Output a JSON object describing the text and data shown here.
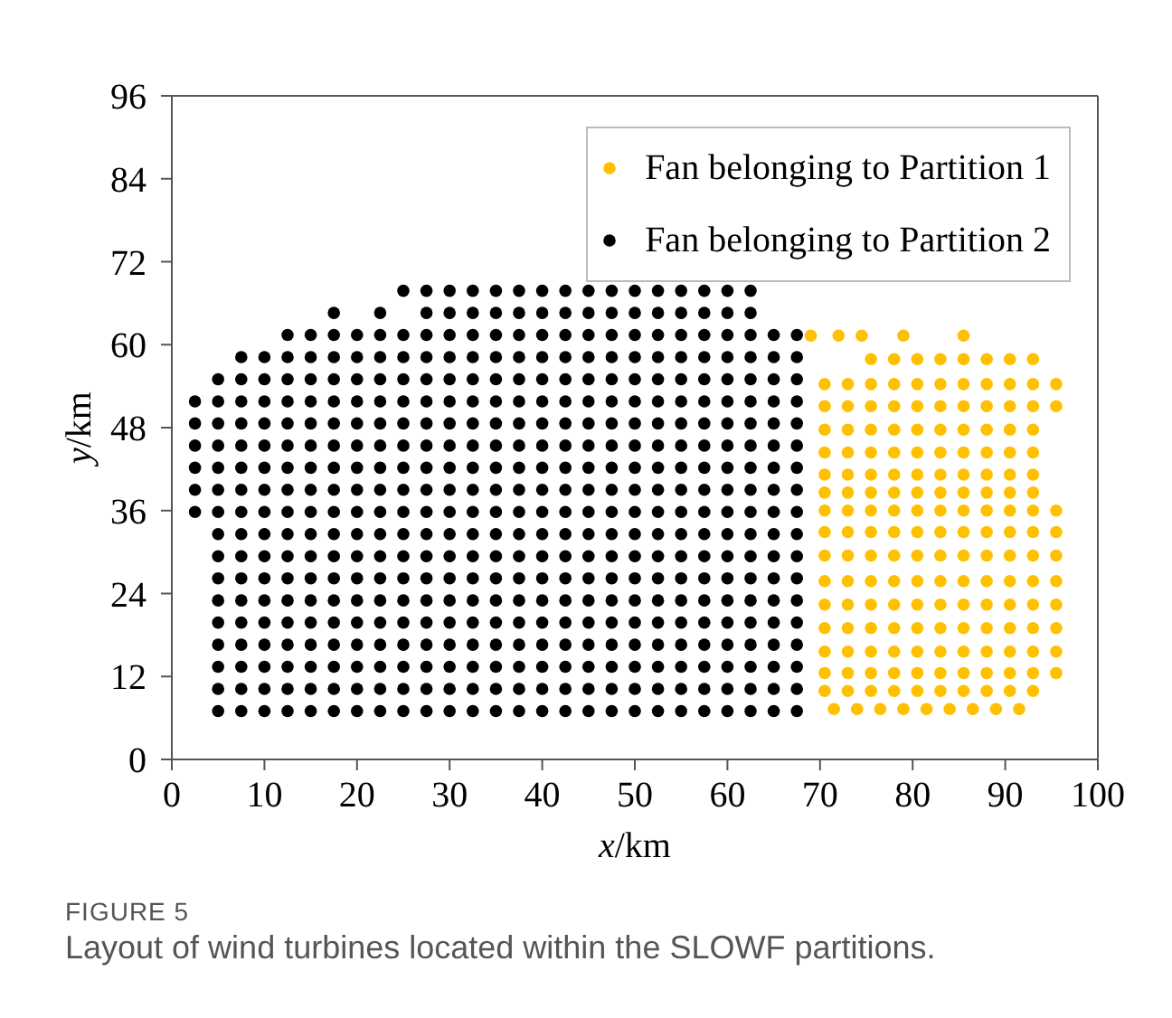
{
  "chart_data": {
    "type": "scatter",
    "xlabel": "x/km",
    "ylabel": "y/km",
    "xlim": [
      0,
      100
    ],
    "xticks": [
      0,
      10,
      20,
      30,
      40,
      50,
      60,
      70,
      80,
      90,
      100
    ],
    "ylim": [
      0,
      96
    ],
    "yticks": [
      0,
      12,
      24,
      36,
      48,
      60,
      72,
      84,
      96
    ],
    "grid": false,
    "legend": "top right",
    "marker": "circle",
    "annotations": [
      "FIGURE 5",
      "Layout of wind turbines located within the SLOWF partitions."
    ],
    "series": [
      {
        "name": "Fan belonging to Partition 1",
        "color": "#ffc000",
        "x": [
          71.5,
          74,
          76.5,
          79,
          81.5,
          84,
          86.5,
          89,
          91.5,
          70.5,
          73,
          75.5,
          78,
          80.5,
          83,
          85.5,
          88,
          90.5,
          93,
          70.5,
          73,
          75.5,
          78,
          80.5,
          83,
          85.5,
          88,
          90.5,
          93,
          95.5,
          70.5,
          73,
          75.5,
          78,
          80.5,
          83,
          85.5,
          88,
          90.5,
          93,
          95.5,
          70.5,
          73,
          75.5,
          78,
          80.5,
          83,
          85.5,
          88,
          90.5,
          93,
          95.5,
          70.5,
          73,
          75.5,
          78,
          80.5,
          83,
          85.5,
          88,
          90.5,
          93,
          95.5,
          70.5,
          73,
          75.5,
          78,
          80.5,
          83,
          85.5,
          88,
          90.5,
          93,
          95.5,
          70.5,
          73,
          75.5,
          78,
          80.5,
          83,
          85.5,
          88,
          90.5,
          93,
          95.5,
          70.5,
          73,
          75.5,
          78,
          80.5,
          83,
          85.5,
          88,
          90.5,
          93,
          95.5,
          70.5,
          73,
          75.5,
          78,
          80.5,
          83,
          85.5,
          88,
          90.5,
          93,
          95.5,
          70.5,
          73,
          75.5,
          78,
          80.5,
          83,
          85.5,
          88,
          90.5,
          93,
          70.5,
          73,
          75.5,
          78,
          80.5,
          83,
          85.5,
          88,
          90.5,
          93,
          70.5,
          73,
          75.5,
          78,
          80.5,
          83,
          85.5,
          88,
          90.5,
          93,
          70.5,
          73,
          75.5,
          78,
          80.5,
          83,
          85.5,
          88,
          90.5,
          93,
          70.5,
          73,
          75.5,
          78,
          80.5,
          83,
          85.5,
          88,
          90.5,
          93,
          95.5,
          70.5,
          73,
          75.5,
          78,
          80.5,
          83,
          85.5,
          88,
          90.5,
          93,
          95.5,
          75.5,
          78,
          80.5,
          83,
          85.5,
          88,
          90.5,
          93,
          69,
          72,
          74.5,
          79,
          85.5
        ],
        "values": [
          7.3,
          7.3,
          7.3,
          7.3,
          7.3,
          7.3,
          7.3,
          7.3,
          7.3,
          9.9,
          9.9,
          9.9,
          9.9,
          9.9,
          9.9,
          9.9,
          9.9,
          9.9,
          9.9,
          12.5,
          12.5,
          12.5,
          12.5,
          12.5,
          12.5,
          12.5,
          12.5,
          12.5,
          12.5,
          12.5,
          15.6,
          15.6,
          15.6,
          15.6,
          15.6,
          15.6,
          15.6,
          15.6,
          15.6,
          15.6,
          15.6,
          19,
          19,
          19,
          19,
          19,
          19,
          19,
          19,
          19,
          19,
          19,
          22.4,
          22.4,
          22.4,
          22.4,
          22.4,
          22.4,
          22.4,
          22.4,
          22.4,
          22.4,
          22.4,
          25.8,
          25.8,
          25.8,
          25.8,
          25.8,
          25.8,
          25.8,
          25.8,
          25.8,
          25.8,
          25.8,
          29.5,
          29.5,
          29.5,
          29.5,
          29.5,
          29.5,
          29.5,
          29.5,
          29.5,
          29.5,
          29.5,
          32.9,
          32.9,
          32.9,
          32.9,
          32.9,
          32.9,
          32.9,
          32.9,
          32.9,
          32.9,
          32.9,
          36,
          36,
          36,
          36,
          36,
          36,
          36,
          36,
          36,
          36,
          36,
          38.6,
          38.6,
          38.6,
          38.6,
          38.6,
          38.6,
          38.6,
          38.6,
          38.6,
          38.6,
          41.2,
          41.2,
          41.2,
          41.2,
          41.2,
          41.2,
          41.2,
          41.2,
          41.2,
          41.2,
          44.4,
          44.4,
          44.4,
          44.4,
          44.4,
          44.4,
          44.4,
          44.4,
          44.4,
          44.4,
          47.7,
          47.7,
          47.7,
          47.7,
          47.7,
          47.7,
          47.7,
          47.7,
          47.7,
          47.7,
          51.1,
          51.1,
          51.1,
          51.1,
          51.1,
          51.1,
          51.1,
          51.1,
          51.1,
          51.1,
          51.1,
          54.3,
          54.3,
          54.3,
          54.3,
          54.3,
          54.3,
          54.3,
          54.3,
          54.3,
          54.3,
          54.3,
          57.9,
          57.9,
          57.9,
          57.9,
          57.9,
          57.9,
          57.9,
          57.9,
          61.3,
          61.3,
          61.3,
          61.3,
          61.3
        ]
      },
      {
        "name": "Fan belonging to Partition 2",
        "color": "#000000",
        "x": [
          5,
          7.5,
          10,
          12.5,
          15,
          17.5,
          20,
          22.5,
          25,
          27.5,
          30,
          32.5,
          35,
          37.5,
          40,
          42.5,
          45,
          47.5,
          50,
          52.5,
          55,
          57.5,
          60,
          62.5,
          65,
          67.5,
          5,
          7.5,
          10,
          12.5,
          15,
          17.5,
          20,
          22.5,
          25,
          27.5,
          30,
          32.5,
          35,
          37.5,
          40,
          42.5,
          45,
          47.5,
          50,
          52.5,
          55,
          57.5,
          60,
          62.5,
          65,
          67.5,
          5,
          7.5,
          10,
          12.5,
          15,
          17.5,
          20,
          22.5,
          25,
          27.5,
          30,
          32.5,
          35,
          37.5,
          40,
          42.5,
          45,
          47.5,
          50,
          52.5,
          55,
          57.5,
          60,
          62.5,
          65,
          67.5,
          5,
          7.5,
          10,
          12.5,
          15,
          17.5,
          20,
          22.5,
          25,
          27.5,
          30,
          32.5,
          35,
          37.5,
          40,
          42.5,
          45,
          47.5,
          50,
          52.5,
          55,
          57.5,
          60,
          62.5,
          65,
          67.5,
          5,
          7.5,
          10,
          12.5,
          15,
          17.5,
          20,
          22.5,
          25,
          27.5,
          30,
          32.5,
          35,
          37.5,
          40,
          42.5,
          45,
          47.5,
          50,
          52.5,
          55,
          57.5,
          60,
          62.5,
          65,
          67.5,
          5,
          7.5,
          10,
          12.5,
          15,
          17.5,
          20,
          22.5,
          25,
          27.5,
          30,
          32.5,
          35,
          37.5,
          40,
          42.5,
          45,
          47.5,
          50,
          52.5,
          55,
          57.5,
          60,
          62.5,
          65,
          67.5,
          5,
          7.5,
          10,
          12.5,
          15,
          17.5,
          20,
          22.5,
          25,
          27.5,
          30,
          32.5,
          35,
          37.5,
          40,
          42.5,
          45,
          47.5,
          50,
          52.5,
          55,
          57.5,
          60,
          62.5,
          65,
          67.5,
          5,
          7.5,
          10,
          12.5,
          15,
          17.5,
          20,
          22.5,
          25,
          27.5,
          30,
          32.5,
          35,
          37.5,
          40,
          42.5,
          45,
          47.5,
          50,
          52.5,
          55,
          57.5,
          60,
          62.5,
          65,
          67.5,
          5,
          7.5,
          10,
          12.5,
          15,
          17.5,
          20,
          22.5,
          25,
          27.5,
          30,
          32.5,
          35,
          37.5,
          40,
          42.5,
          45,
          47.5,
          50,
          52.5,
          55,
          57.5,
          60,
          62.5,
          65,
          67.5,
          2.5,
          5,
          7.5,
          10,
          12.5,
          15,
          17.5,
          20,
          22.5,
          25,
          27.5,
          30,
          32.5,
          35,
          37.5,
          40,
          42.5,
          45,
          47.5,
          50,
          52.5,
          55,
          57.5,
          60,
          62.5,
          65,
          67.5,
          2.5,
          5,
          7.5,
          10,
          12.5,
          15,
          17.5,
          20,
          22.5,
          25,
          27.5,
          30,
          32.5,
          35,
          37.5,
          40,
          42.5,
          45,
          47.5,
          50,
          52.5,
          55,
          57.5,
          60,
          62.5,
          65,
          67.5,
          2.5,
          5,
          7.5,
          10,
          12.5,
          15,
          17.5,
          20,
          22.5,
          25,
          27.5,
          30,
          32.5,
          35,
          37.5,
          40,
          42.5,
          45,
          47.5,
          50,
          52.5,
          55,
          57.5,
          60,
          62.5,
          65,
          67.5,
          2.5,
          5,
          7.5,
          10,
          12.5,
          15,
          17.5,
          20,
          22.5,
          25,
          27.5,
          30,
          32.5,
          35,
          37.5,
          40,
          42.5,
          45,
          47.5,
          50,
          52.5,
          55,
          57.5,
          60,
          62.5,
          65,
          67.5,
          2.5,
          5,
          7.5,
          10,
          12.5,
          15,
          17.5,
          20,
          22.5,
          25,
          27.5,
          30,
          32.5,
          35,
          37.5,
          40,
          42.5,
          45,
          47.5,
          50,
          52.5,
          55,
          57.5,
          60,
          62.5,
          65,
          67.5,
          2.5,
          5,
          7.5,
          10,
          12.5,
          15,
          17.5,
          20,
          22.5,
          25,
          27.5,
          30,
          32.5,
          35,
          37.5,
          40,
          42.5,
          45,
          47.5,
          50,
          52.5,
          55,
          57.5,
          60,
          62.5,
          65,
          67.5,
          5,
          7.5,
          10,
          12.5,
          15,
          17.5,
          20,
          22.5,
          25,
          27.5,
          30,
          32.5,
          35,
          37.5,
          40,
          42.5,
          45,
          47.5,
          50,
          52.5,
          55,
          57.5,
          60,
          62.5,
          65,
          67.5,
          7.5,
          10,
          12.5,
          15,
          17.5,
          20,
          22.5,
          25,
          27.5,
          30,
          32.5,
          35,
          37.5,
          40,
          42.5,
          45,
          47.5,
          50,
          52.5,
          55,
          57.5,
          60,
          62.5,
          65,
          67.5,
          12.5,
          15,
          17.5,
          20,
          22.5,
          25,
          27.5,
          30,
          32.5,
          35,
          37.5,
          40,
          42.5,
          45,
          47.5,
          50,
          52.5,
          55,
          57.5,
          60,
          62.5,
          65,
          67.5,
          17.5,
          22.5,
          27.5,
          30,
          32.5,
          35,
          37.5,
          40,
          42.5,
          45,
          47.5,
          50,
          52.5,
          55,
          57.5,
          60,
          62.5,
          25,
          27.5,
          30,
          32.5,
          35,
          37.5,
          40,
          42.5,
          45,
          47.5,
          50,
          52.5,
          55,
          57.5,
          60,
          62.5
        ],
        "values": [
          7,
          7,
          7,
          7,
          7,
          7,
          7,
          7,
          7,
          7,
          7,
          7,
          7,
          7,
          7,
          7,
          7,
          7,
          7,
          7,
          7,
          7,
          7,
          7,
          7,
          7,
          10.2,
          10.2,
          10.2,
          10.2,
          10.2,
          10.2,
          10.2,
          10.2,
          10.2,
          10.2,
          10.2,
          10.2,
          10.2,
          10.2,
          10.2,
          10.2,
          10.2,
          10.2,
          10.2,
          10.2,
          10.2,
          10.2,
          10.2,
          10.2,
          10.2,
          10.2,
          13.4,
          13.4,
          13.4,
          13.4,
          13.4,
          13.4,
          13.4,
          13.4,
          13.4,
          13.4,
          13.4,
          13.4,
          13.4,
          13.4,
          13.4,
          13.4,
          13.4,
          13.4,
          13.4,
          13.4,
          13.4,
          13.4,
          13.4,
          13.4,
          13.4,
          13.4,
          16.6,
          16.6,
          16.6,
          16.6,
          16.6,
          16.6,
          16.6,
          16.6,
          16.6,
          16.6,
          16.6,
          16.6,
          16.6,
          16.6,
          16.6,
          16.6,
          16.6,
          16.6,
          16.6,
          16.6,
          16.6,
          16.6,
          16.6,
          16.6,
          16.6,
          16.6,
          19.8,
          19.8,
          19.8,
          19.8,
          19.8,
          19.8,
          19.8,
          19.8,
          19.8,
          19.8,
          19.8,
          19.8,
          19.8,
          19.8,
          19.8,
          19.8,
          19.8,
          19.8,
          19.8,
          19.8,
          19.8,
          19.8,
          19.8,
          19.8,
          19.8,
          19.8,
          23,
          23,
          23,
          23,
          23,
          23,
          23,
          23,
          23,
          23,
          23,
          23,
          23,
          23,
          23,
          23,
          23,
          23,
          23,
          23,
          23,
          23,
          23,
          23,
          23,
          23,
          26.2,
          26.2,
          26.2,
          26.2,
          26.2,
          26.2,
          26.2,
          26.2,
          26.2,
          26.2,
          26.2,
          26.2,
          26.2,
          26.2,
          26.2,
          26.2,
          26.2,
          26.2,
          26.2,
          26.2,
          26.2,
          26.2,
          26.2,
          26.2,
          26.2,
          26.2,
          29.4,
          29.4,
          29.4,
          29.4,
          29.4,
          29.4,
          29.4,
          29.4,
          29.4,
          29.4,
          29.4,
          29.4,
          29.4,
          29.4,
          29.4,
          29.4,
          29.4,
          29.4,
          29.4,
          29.4,
          29.4,
          29.4,
          29.4,
          29.4,
          29.4,
          29.4,
          32.6,
          32.6,
          32.6,
          32.6,
          32.6,
          32.6,
          32.6,
          32.6,
          32.6,
          32.6,
          32.6,
          32.6,
          32.6,
          32.6,
          32.6,
          32.6,
          32.6,
          32.6,
          32.6,
          32.6,
          32.6,
          32.6,
          32.6,
          32.6,
          32.6,
          32.6,
          35.8,
          35.8,
          35.8,
          35.8,
          35.8,
          35.8,
          35.8,
          35.8,
          35.8,
          35.8,
          35.8,
          35.8,
          35.8,
          35.8,
          35.8,
          35.8,
          35.8,
          35.8,
          35.8,
          35.8,
          35.8,
          35.8,
          35.8,
          35.8,
          35.8,
          35.8,
          35.8,
          39,
          39,
          39,
          39,
          39,
          39,
          39,
          39,
          39,
          39,
          39,
          39,
          39,
          39,
          39,
          39,
          39,
          39,
          39,
          39,
          39,
          39,
          39,
          39,
          39,
          39,
          39,
          42.2,
          42.2,
          42.2,
          42.2,
          42.2,
          42.2,
          42.2,
          42.2,
          42.2,
          42.2,
          42.2,
          42.2,
          42.2,
          42.2,
          42.2,
          42.2,
          42.2,
          42.2,
          42.2,
          42.2,
          42.2,
          42.2,
          42.2,
          42.2,
          42.2,
          42.2,
          42.2,
          45.4,
          45.4,
          45.4,
          45.4,
          45.4,
          45.4,
          45.4,
          45.4,
          45.4,
          45.4,
          45.4,
          45.4,
          45.4,
          45.4,
          45.4,
          45.4,
          45.4,
          45.4,
          45.4,
          45.4,
          45.4,
          45.4,
          45.4,
          45.4,
          45.4,
          45.4,
          45.4,
          48.6,
          48.6,
          48.6,
          48.6,
          48.6,
          48.6,
          48.6,
          48.6,
          48.6,
          48.6,
          48.6,
          48.6,
          48.6,
          48.6,
          48.6,
          48.6,
          48.6,
          48.6,
          48.6,
          48.6,
          48.6,
          48.6,
          48.6,
          48.6,
          48.6,
          48.6,
          48.6,
          51.8,
          51.8,
          51.8,
          51.8,
          51.8,
          51.8,
          51.8,
          51.8,
          51.8,
          51.8,
          51.8,
          51.8,
          51.8,
          51.8,
          51.8,
          51.8,
          51.8,
          51.8,
          51.8,
          51.8,
          51.8,
          51.8,
          51.8,
          51.8,
          51.8,
          51.8,
          51.8,
          55,
          55,
          55,
          55,
          55,
          55,
          55,
          55,
          55,
          55,
          55,
          55,
          55,
          55,
          55,
          55,
          55,
          55,
          55,
          55,
          55,
          55,
          55,
          55,
          55,
          55,
          58.2,
          58.2,
          58.2,
          58.2,
          58.2,
          58.2,
          58.2,
          58.2,
          58.2,
          58.2,
          58.2,
          58.2,
          58.2,
          58.2,
          58.2,
          58.2,
          58.2,
          58.2,
          58.2,
          58.2,
          58.2,
          58.2,
          58.2,
          58.2,
          58.2,
          61.4,
          61.4,
          61.4,
          61.4,
          61.4,
          61.4,
          61.4,
          61.4,
          61.4,
          61.4,
          61.4,
          61.4,
          61.4,
          61.4,
          61.4,
          61.4,
          61.4,
          61.4,
          61.4,
          61.4,
          61.4,
          61.4,
          61.4,
          64.6,
          64.6,
          64.6,
          64.6,
          64.6,
          64.6,
          64.6,
          64.6,
          64.6,
          64.6,
          64.6,
          64.6,
          64.6,
          64.6,
          64.6,
          64.6,
          64.6,
          67.8,
          67.8,
          67.8,
          67.8,
          67.8,
          67.8,
          67.8,
          67.8,
          67.8,
          67.8,
          67.8,
          67.8,
          67.8,
          67.8,
          67.8,
          67.8
        ]
      }
    ]
  }
}
